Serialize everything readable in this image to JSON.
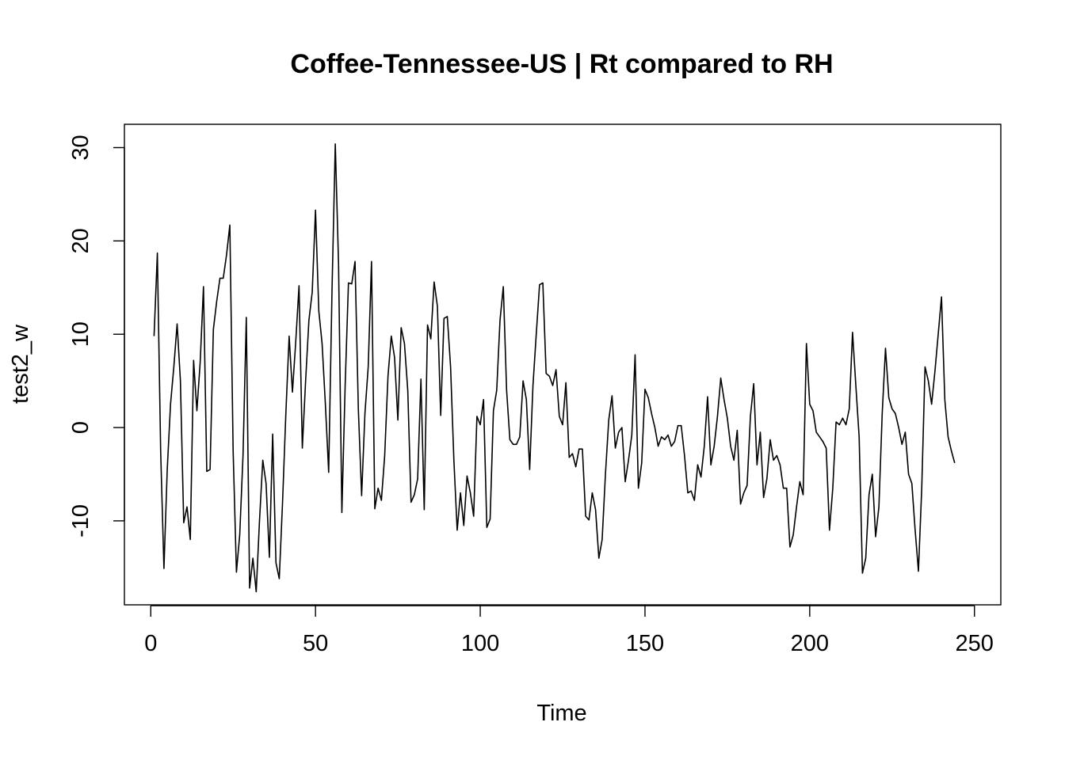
{
  "chart_data": {
    "type": "line",
    "title": "Coffee-Tennessee-US | Rt compared to RH",
    "xlabel": "Time",
    "ylabel": "test2_w",
    "xlim": [
      -8,
      258
    ],
    "ylim": [
      -19,
      32.5
    ],
    "x_ticks": [
      0,
      50,
      100,
      150,
      200,
      250
    ],
    "y_ticks": [
      -10,
      0,
      10,
      20,
      30
    ],
    "x_tick_labels": [
      "0",
      "50",
      "100",
      "150",
      "200",
      "250"
    ],
    "y_tick_labels": [
      "-10",
      "0",
      "10",
      "20",
      "30"
    ],
    "grid": false,
    "series": [
      {
        "color": "#000000",
        "x_start": 1,
        "values": [
          9.8,
          18.7,
          -2.5,
          -15.1,
          -4.5,
          2.5,
          6.5,
          11.1,
          5.0,
          -10.2,
          -8.5,
          -12.0,
          7.2,
          1.8,
          7.0,
          15.1,
          -4.7,
          -4.5,
          10.5,
          13.5,
          16.0,
          16.0,
          18.5,
          21.7,
          -2.5,
          -15.5,
          -11.5,
          -3.0,
          11.8,
          -17.2,
          -14.0,
          -17.6,
          -10.0,
          -3.5,
          -6.0,
          -13.9,
          -0.7,
          -14.5,
          -16.2,
          -8.0,
          1.5,
          9.8,
          3.8,
          9.2,
          15.2,
          -2.2,
          5.0,
          11.5,
          14.5,
          23.3,
          12.5,
          9.0,
          2.5,
          -4.8,
          14.5,
          30.4,
          17.5,
          -9.1,
          4.5,
          15.5,
          15.4,
          17.8,
          2.0,
          -7.3,
          1.5,
          6.5,
          17.8,
          -8.7,
          -6.5,
          -7.8,
          -3.0,
          5.5,
          9.8,
          7.5,
          0.8,
          10.7,
          9.0,
          4.0,
          -8.0,
          -7.2,
          -5.5,
          5.2,
          -8.8,
          11.0,
          9.5,
          15.6,
          13.0,
          1.3,
          11.7,
          11.9,
          6.5,
          -3.5,
          -11.0,
          -7.0,
          -10.5,
          -5.2,
          -7.0,
          -9.5,
          1.2,
          0.3,
          3.0,
          -10.7,
          -9.8,
          1.8,
          4.0,
          11.5,
          15.1,
          4.0,
          -1.3,
          -1.8,
          -1.8,
          -1.0,
          5.0,
          3.0,
          -4.5,
          4.5,
          10.0,
          15.3,
          15.5,
          5.8,
          5.5,
          4.5,
          6.2,
          1.2,
          0.3,
          4.8,
          -3.2,
          -2.8,
          -4.2,
          -2.3,
          -2.3,
          -9.5,
          -9.9,
          -7.0,
          -8.8,
          -14.0,
          -12.0,
          -5.0,
          0.8,
          3.4,
          -2.2,
          -0.5,
          0.0,
          -5.8,
          -3.5,
          -0.8,
          7.8,
          -6.5,
          -3.8,
          4.1,
          3.2,
          1.5,
          0.0,
          -2.0,
          -1.0,
          -1.3,
          -0.8,
          -2.0,
          -1.5,
          0.2,
          0.2,
          -3.0,
          -7.0,
          -6.8,
          -7.8,
          -4.0,
          -5.3,
          -2.0,
          3.3,
          -4.0,
          -2.0,
          1.2,
          5.3,
          3.0,
          1.0,
          -2.0,
          -3.5,
          -0.3,
          -8.2,
          -7.0,
          -6.2,
          1.2,
          4.7,
          -4.0,
          -0.5,
          -7.5,
          -5.5,
          -1.3,
          -3.5,
          -3.0,
          -4.0,
          -6.5,
          -6.5,
          -12.8,
          -11.5,
          -8.5,
          -5.8,
          -7.2,
          9.0,
          2.5,
          1.8,
          -0.5,
          -1.0,
          -1.5,
          -2.2,
          -11.0,
          -6.5,
          0.6,
          0.3,
          1.0,
          0.3,
          2.0,
          10.2,
          4.5,
          -1.0,
          -15.6,
          -14.0,
          -7.2,
          -5.0,
          -11.7,
          -8.5,
          1.5,
          8.5,
          3.2,
          2.0,
          1.5,
          0.0,
          -1.8,
          -0.5,
          -5.0,
          -6.0,
          -11.0,
          -15.4,
          -6.5,
          6.5,
          5.0,
          2.5,
          6.0,
          10.0,
          14.0,
          3.0,
          -1.0,
          -2.5,
          -3.8
        ]
      }
    ]
  }
}
